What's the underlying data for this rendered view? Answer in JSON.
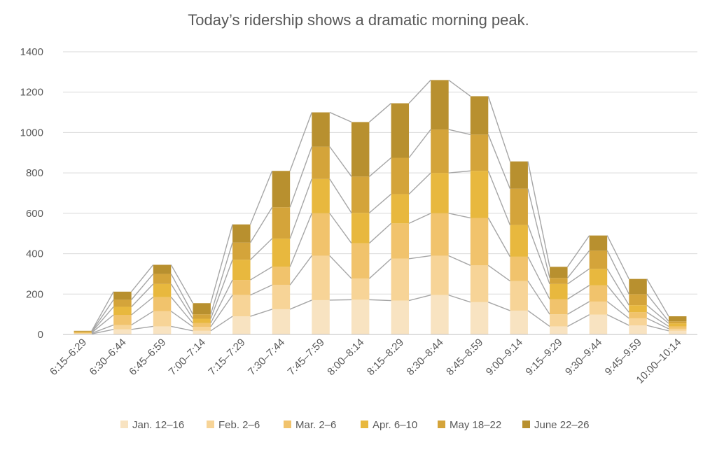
{
  "chart_data": {
    "type": "bar",
    "stacked": true,
    "title": "Today’s ridership shows a dramatic morning peak.",
    "xlabel": "",
    "ylabel": "",
    "ylim": [
      0,
      1400
    ],
    "yticks": [
      0,
      200,
      400,
      600,
      800,
      1000,
      1200,
      1400
    ],
    "grid": true,
    "legend_position": "bottom",
    "series_lines": true,
    "categories": [
      "6:15–6:29",
      "6:30–6:44",
      "6:45–6:59",
      "7:00–7:14",
      "7:15–7:29",
      "7:30–7:44",
      "7:45–7:59",
      "8:00–8:14",
      "8:15–8:29",
      "8:30–8:44",
      "8:45–8:59",
      "9:00–9:14",
      "9:15–9:29",
      "9:30–9:44",
      "9:45–9:59",
      "10:00–10:14"
    ],
    "series": [
      {
        "name": "Jan. 12–16",
        "color": "#F8E3C1",
        "values": [
          3,
          25,
          40,
          18,
          90,
          125,
          170,
          172,
          168,
          195,
          160,
          118,
          40,
          98,
          45,
          18
        ]
      },
      {
        "name": "Feb. 2–6",
        "color": "#F7D497",
        "values": [
          3,
          22,
          75,
          20,
          105,
          120,
          220,
          105,
          207,
          195,
          182,
          147,
          60,
          65,
          35,
          10
        ]
      },
      {
        "name": "Mar. 2–6",
        "color": "#F1C36C",
        "values": [
          3,
          50,
          70,
          18,
          75,
          90,
          210,
          175,
          175,
          210,
          235,
          120,
          75,
          80,
          30,
          12
        ]
      },
      {
        "name": "Apr. 6–10",
        "color": "#E8B83E",
        "values": [
          3,
          40,
          65,
          22,
          100,
          140,
          170,
          150,
          145,
          200,
          233,
          157,
          75,
          82,
          35,
          15
        ]
      },
      {
        "name": "May 18–22",
        "color": "#D4A43A",
        "values": [
          3,
          35,
          50,
          22,
          85,
          155,
          160,
          180,
          180,
          215,
          180,
          180,
          30,
          90,
          55,
          10
        ]
      },
      {
        "name": "June 22–26",
        "color": "#B8902F",
        "values": [
          3,
          40,
          45,
          55,
          90,
          180,
          170,
          270,
          270,
          245,
          190,
          135,
          55,
          75,
          75,
          25
        ]
      }
    ]
  }
}
